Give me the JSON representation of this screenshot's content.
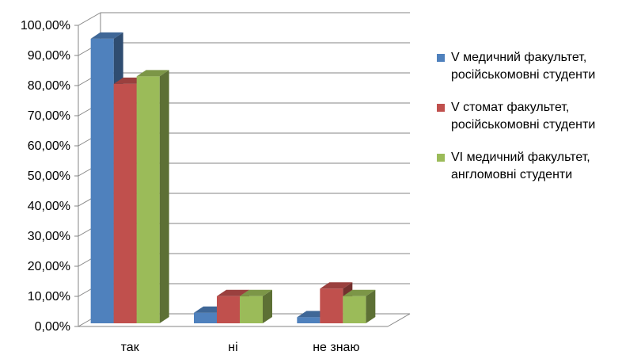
{
  "chart_data": {
    "type": "bar",
    "title": "",
    "xlabel": "",
    "ylabel": "",
    "categories": [
      "так",
      "ні",
      "не знаю"
    ],
    "ylim": [
      0,
      100
    ],
    "yticks": [
      "0,00%",
      "10,00%",
      "20,00%",
      "30,00%",
      "40,00%",
      "50,00%",
      "60,00%",
      "70,00%",
      "80,00%",
      "90,00%",
      "100,00%"
    ],
    "grid": true,
    "legend_position": "right",
    "series": [
      {
        "name": "V медичний факультет,\nросійськомовні студенти",
        "color": "#4f81bd",
        "values": [
          94.5,
          3.5,
          2.0
        ]
      },
      {
        "name": "V стомат факультет,\nросійськомовні студенти",
        "color": "#c0504d",
        "values": [
          79.5,
          9.0,
          11.5
        ]
      },
      {
        "name": "VI медичний факультет,\nангломовні студенти",
        "color": "#9bbb59",
        "values": [
          82.0,
          9.0,
          9.0
        ]
      }
    ]
  }
}
